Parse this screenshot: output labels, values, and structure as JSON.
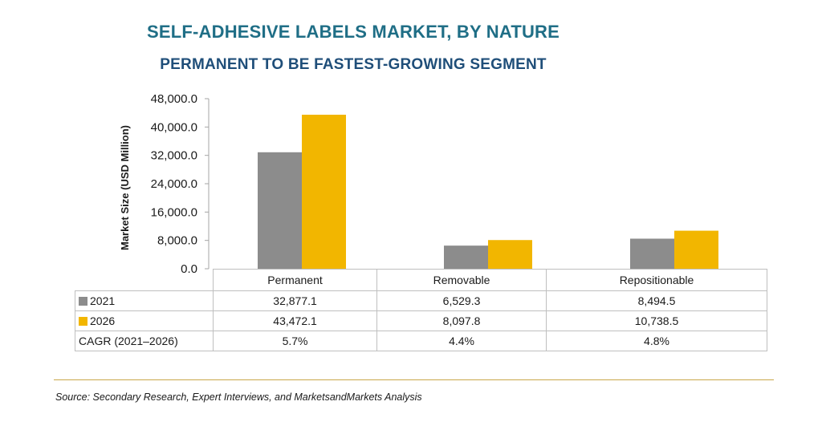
{
  "title": "SELF-ADHESIVE LABELS MARKET, BY NATURE",
  "subtitle": "PERMANENT TO BE FASTEST-GROWING SEGMENT",
  "source": "Source: Secondary Research, Expert Interviews, and MarketsandMarkets Analysis",
  "chart_data": {
    "type": "bar",
    "title": "SELF-ADHESIVE LABELS MARKET, BY NATURE",
    "subtitle": "PERMANENT TO BE FASTEST-GROWING SEGMENT",
    "xlabel": "",
    "ylabel": "Market Size (USD Million)",
    "ylim": [
      0,
      48000
    ],
    "yticks": [
      "0.0",
      "8,000.0",
      "16,000.0",
      "24,000.0",
      "32,000.0",
      "40,000.0",
      "48,000.0"
    ],
    "ytick_values": [
      0,
      8000,
      16000,
      24000,
      32000,
      40000,
      48000
    ],
    "categories": [
      "Permanent",
      "Removable",
      "Repositionable"
    ],
    "series": [
      {
        "name": "2021",
        "values": [
          32877.1,
          6529.3,
          8494.5
        ],
        "labels": [
          "32,877.1",
          "6,529.3",
          "8,494.5"
        ],
        "color": "#8c8c8c"
      },
      {
        "name": "2026",
        "values": [
          43472.1,
          8097.8,
          10738.5
        ],
        "labels": [
          "43,472.1",
          "8,097.8",
          "10,738.5"
        ],
        "color": "#f2b600"
      }
    ],
    "cagr": {
      "name": "CAGR (2021–2026)",
      "values": [
        "5.7%",
        "4.4%",
        "4.8%"
      ]
    },
    "grid": false,
    "legend": "data-table"
  }
}
